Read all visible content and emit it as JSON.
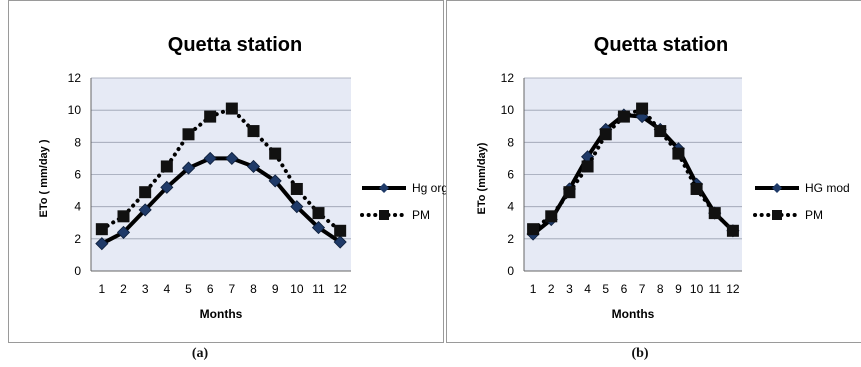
{
  "chart_data": [
    {
      "type": "line",
      "title": "Quetta station",
      "xlabel": "Months",
      "ylabel": "ETo ( mm/day )",
      "categories": [
        "1",
        "2",
        "3",
        "4",
        "5",
        "6",
        "7",
        "8",
        "9",
        "10",
        "11",
        "12"
      ],
      "ylim": [
        0,
        12
      ],
      "yticks": [
        "0",
        "2",
        "4",
        "6",
        "8",
        "10",
        "12"
      ],
      "grid": true,
      "legend_position": "right",
      "plot_background": "#e6eaf5",
      "series": [
        {
          "name": "Hg org",
          "style": "solid",
          "marker": "diamond",
          "color": "#000000",
          "values": [
            1.7,
            2.4,
            3.8,
            5.2,
            6.4,
            7.0,
            7.0,
            6.5,
            5.6,
            4.0,
            2.7,
            1.8
          ]
        },
        {
          "name": "PM",
          "style": "dotted",
          "marker": "square",
          "color": "#000000",
          "values": [
            2.6,
            3.4,
            4.9,
            6.5,
            8.5,
            9.6,
            10.1,
            8.7,
            7.3,
            5.1,
            3.6,
            2.5
          ]
        }
      ]
    },
    {
      "type": "line",
      "title": "Quetta station",
      "xlabel": "Months",
      "ylabel": "ETo (mm/day)",
      "categories": [
        "1",
        "2",
        "3",
        "4",
        "5",
        "6",
        "7",
        "8",
        "9",
        "10",
        "11",
        "12"
      ],
      "ylim": [
        0,
        12
      ],
      "yticks": [
        "0",
        "2",
        "4",
        "6",
        "8",
        "10",
        "12"
      ],
      "grid": true,
      "legend_position": "right",
      "plot_background": "#e6eaf5",
      "series": [
        {
          "name": "HG mod",
          "style": "solid",
          "marker": "diamond",
          "color": "#000000",
          "values": [
            2.3,
            3.2,
            5.1,
            7.1,
            8.8,
            9.7,
            9.6,
            8.8,
            7.6,
            5.4,
            3.6,
            2.5
          ]
        },
        {
          "name": "PM",
          "style": "dotted",
          "marker": "square",
          "color": "#000000",
          "values": [
            2.6,
            3.4,
            4.9,
            6.5,
            8.5,
            9.6,
            10.1,
            8.7,
            7.3,
            5.1,
            3.6,
            2.5
          ]
        }
      ]
    }
  ],
  "captions": [
    "(a)",
    "(b)"
  ]
}
